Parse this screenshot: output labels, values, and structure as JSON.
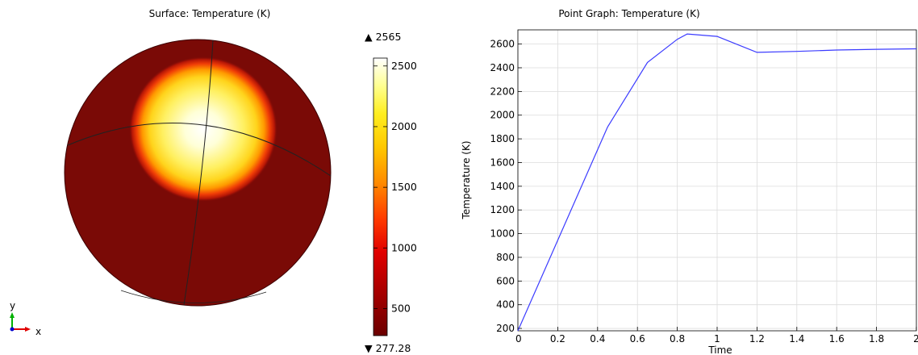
{
  "left_plot": {
    "title": "Surface: Temperature (K)",
    "max_marker": "▲ 2565",
    "min_marker": "▼ 277.28",
    "colorbar_ticks": [
      "2500",
      "2000",
      "1500",
      "1000",
      "500"
    ],
    "colorbar_tick_values": [
      2500,
      2000,
      1500,
      1000,
      500
    ],
    "range": [
      277.28,
      2565
    ],
    "axes_triad": {
      "y_label": "y",
      "x_label": "x"
    },
    "colors": {
      "sphere_base": "#7a0a06",
      "hot_core": "#ffffe8",
      "hot_yellow": "#ffee3a",
      "orange": "#ff8c00",
      "red": "#e81e0a"
    }
  },
  "chart_data": {
    "type": "line",
    "title": "Point Graph: Temperature (K)",
    "xlabel": "Time",
    "ylabel": "Temperature (K)",
    "xlim": [
      0,
      2
    ],
    "ylim": [
      180,
      2720
    ],
    "grid": true,
    "x_ticks": [
      "0",
      "0.2",
      "0.4",
      "0.6",
      "0.8",
      "1",
      "1.2",
      "1.4",
      "1.6",
      "1.8",
      "2"
    ],
    "x_tick_values": [
      0,
      0.2,
      0.4,
      0.6,
      0.8,
      1,
      1.2,
      1.4,
      1.6,
      1.8,
      2
    ],
    "y_ticks": [
      "200",
      "400",
      "600",
      "800",
      "1000",
      "1200",
      "1400",
      "1600",
      "1800",
      "2000",
      "2200",
      "2400",
      "2600"
    ],
    "y_tick_values": [
      200,
      400,
      600,
      800,
      1000,
      1200,
      1400,
      1600,
      1800,
      2000,
      2200,
      2400,
      2600
    ],
    "series": [
      {
        "color": "#3b3bff",
        "x": [
          0,
          0.45,
          0.65,
          0.8,
          0.85,
          1.0,
          1.2,
          1.4,
          1.6,
          1.8,
          2.0
        ],
        "y": [
          180,
          1900,
          2445,
          2640,
          2685,
          2665,
          2530,
          2538,
          2550,
          2556,
          2560
        ]
      }
    ]
  }
}
